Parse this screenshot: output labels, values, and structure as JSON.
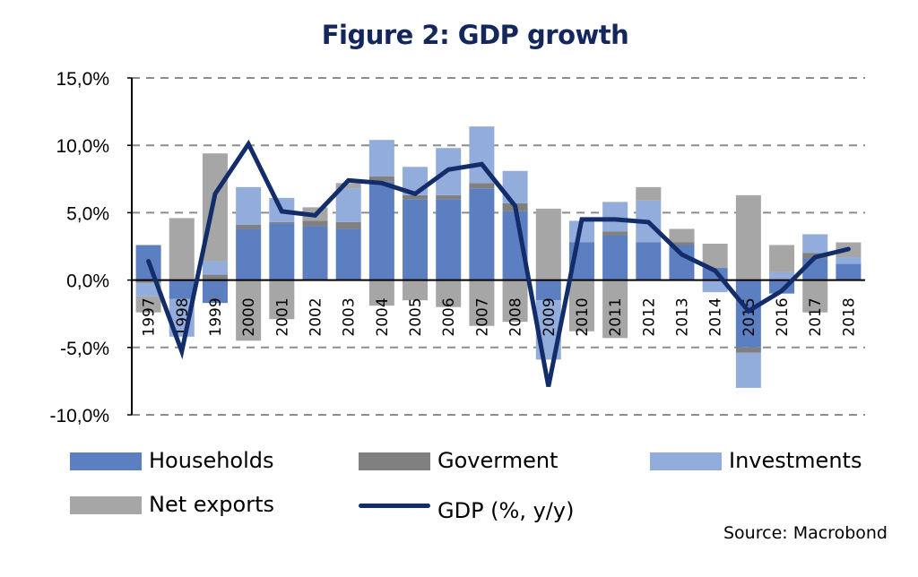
{
  "chart_data": {
    "type": "bar",
    "subtype": "stacked bar with line overlay",
    "title": "Figure 2: GDP growth",
    "xlabel": "",
    "ylabel": "",
    "ylim": [
      -10,
      15
    ],
    "yticks": [
      15,
      10,
      5,
      0,
      -5,
      -10
    ],
    "ytick_labels": [
      "15,0%",
      "10,0%",
      "5,0%",
      "0,0%",
      "-5,0%",
      "-10,0%"
    ],
    "grid": "horizontal dashed",
    "categories": [
      "1997",
      "1998",
      "1999",
      "2000",
      "2001",
      "2002",
      "2003",
      "2004",
      "2005",
      "2006",
      "2007",
      "2008",
      "2009",
      "2010",
      "2011",
      "2012",
      "2013",
      "2014",
      "2015",
      "2016",
      "2017",
      "2018"
    ],
    "series": [
      {
        "name": "Households",
        "type": "bar",
        "color": "#5b7fc1",
        "values": [
          2.6,
          -1.4,
          -1.7,
          3.8,
          4.2,
          4.0,
          3.8,
          7.3,
          6.0,
          6.0,
          6.8,
          5.1,
          -1.5,
          2.8,
          3.3,
          2.8,
          2.6,
          0.9,
          -5.0,
          -1.0,
          1.6,
          1.2
        ]
      },
      {
        "name": "Goverment",
        "type": "bar",
        "color": "#808080",
        "values": [
          -0.2,
          0.0,
          0.4,
          0.3,
          0.1,
          0.4,
          0.5,
          0.4,
          0.3,
          0.3,
          0.4,
          0.6,
          0.0,
          0.0,
          0.3,
          0.0,
          0.2,
          0.0,
          -0.4,
          0.0,
          0.4,
          0.0
        ]
      },
      {
        "name": "Investments",
        "type": "bar",
        "color": "#92acdc",
        "values": [
          -1.0,
          -2.8,
          1.0,
          2.8,
          1.8,
          0.0,
          2.5,
          2.7,
          2.1,
          3.5,
          4.2,
          2.4,
          -4.4,
          1.6,
          2.2,
          3.1,
          0.0,
          -0.9,
          -2.6,
          0.6,
          1.4,
          0.5
        ]
      },
      {
        "name": "Net exports",
        "type": "bar",
        "color": "#a6a6a6",
        "values": [
          -1.2,
          4.6,
          8.0,
          -4.5,
          -2.9,
          1.0,
          0.4,
          -1.9,
          -1.5,
          -2.0,
          -3.4,
          -3.1,
          5.3,
          -3.8,
          -4.3,
          1.0,
          1.0,
          1.8,
          6.3,
          2.0,
          -2.4,
          1.1
        ]
      },
      {
        "name": "GDP (%, y/y)",
        "type": "line",
        "color": "#132d6b",
        "values": [
          1.4,
          -5.3,
          6.4,
          10.1,
          5.1,
          4.8,
          7.4,
          7.2,
          6.4,
          8.2,
          8.6,
          5.5,
          -7.9,
          4.5,
          4.5,
          4.3,
          1.9,
          0.7,
          -2.3,
          -0.8,
          1.7,
          2.3
        ]
      }
    ],
    "legend": {
      "placement": "bottom",
      "entries": [
        "Households",
        "Goverment",
        "Investments",
        "Net exports",
        "GDP (%, y/y)"
      ]
    },
    "source": "Source:  Macrobond"
  }
}
